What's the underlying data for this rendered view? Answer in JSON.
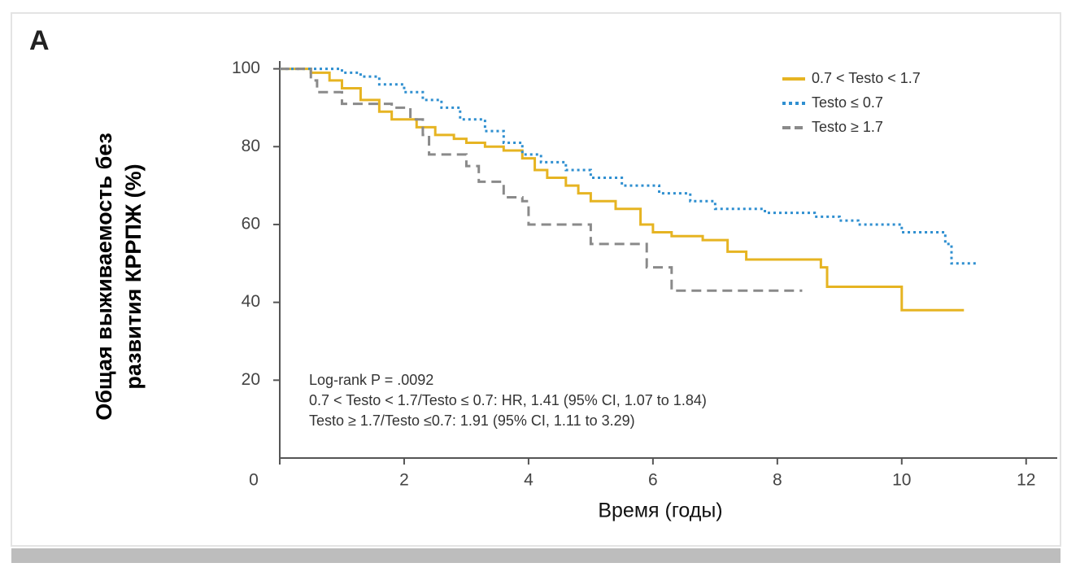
{
  "chart_data": {
    "type": "step",
    "title": "A",
    "ylabel_lines": [
      "Общая выживаемость без",
      "развития КРРПЖ (%)"
    ],
    "xlabel": "Время (годы)",
    "xlim": [
      0,
      12.5
    ],
    "ylim": [
      0,
      102
    ],
    "xticks": [
      0,
      2,
      4,
      6,
      8,
      10,
      12
    ],
    "yticks": [
      20,
      40,
      60,
      80,
      100
    ],
    "legend": "top-right",
    "annotations": [
      "Log-rank P = .0092",
      "0.7 < Testo < 1.7/Testo ≤ 0.7: HR, 1.41 (95% CI, 1.07 to 1.84)",
      "Testo ≥ 1.7/Testo ≤0.7: 1.91 (95% CI, 1.11 to 3.29)"
    ],
    "series": [
      {
        "name": "0.7 < Testo < 1.7",
        "color": "#e6b422",
        "style": "solid",
        "x": [
          0,
          0.5,
          0.8,
          1,
          1.3,
          1.6,
          1.8,
          2.2,
          2.5,
          2.8,
          3,
          3.3,
          3.6,
          3.9,
          4.1,
          4.3,
          4.6,
          4.8,
          5,
          5.4,
          5.8,
          6,
          6.3,
          6.8,
          7.2,
          7.5,
          8.7,
          8.8,
          10,
          11
        ],
        "values": [
          100,
          99,
          97,
          95,
          92,
          89,
          87,
          85,
          83,
          82,
          81,
          80,
          79,
          77,
          74,
          72,
          70,
          68,
          66,
          64,
          60,
          58,
          57,
          56,
          53,
          51,
          49,
          44,
          38,
          38
        ]
      },
      {
        "name": "Testo ≤ 0.7",
        "color": "#2f8fd0",
        "style": "dotted",
        "x": [
          0,
          0.8,
          1,
          1.3,
          1.6,
          2,
          2.3,
          2.6,
          2.9,
          3.3,
          3.6,
          3.9,
          4.2,
          4.6,
          5,
          5.5,
          6.1,
          6.6,
          7,
          7.8,
          8.6,
          9,
          9.3,
          10,
          10.7,
          10.8,
          11.2
        ],
        "values": [
          100,
          100,
          99,
          98,
          96,
          94,
          92,
          90,
          87,
          84,
          81,
          78,
          76,
          74,
          72,
          70,
          68,
          66,
          64,
          63,
          62,
          61,
          60,
          58,
          55,
          50,
          50
        ]
      },
      {
        "name": "Testo ≥ 1.7",
        "color": "#8a8a8a",
        "style": "dashed",
        "x": [
          0,
          0.5,
          0.6,
          1,
          1.8,
          2.1,
          2.3,
          2.4,
          3,
          3.2,
          3.6,
          3.9,
          4,
          5,
          5.9,
          6.3,
          8.4
        ],
        "values": [
          100,
          97,
          94,
          91,
          90,
          87,
          83,
          78,
          75,
          71,
          67,
          66,
          60,
          55,
          49,
          43,
          43
        ]
      }
    ]
  }
}
